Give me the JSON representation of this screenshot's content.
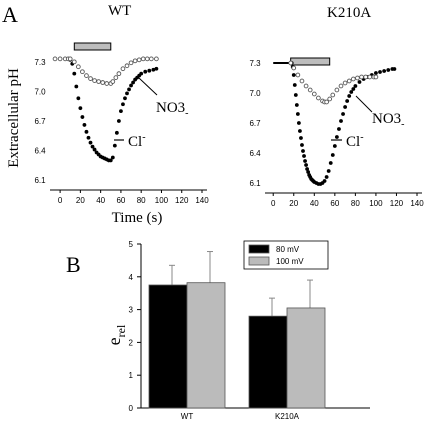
{
  "panel_labels": {
    "a": "A",
    "b": "B"
  },
  "shared": {
    "ylabel": "Extracellular pH",
    "xlabel": "Time (s)",
    "yticks": [
      6.1,
      6.4,
      6.7,
      7.0,
      7.3
    ],
    "xticks": [
      0,
      20,
      40,
      60,
      80,
      100,
      120,
      140
    ]
  },
  "chart_data": [
    {
      "type": "scatter",
      "title": "WT",
      "xlabel": "Time (s)",
      "ylabel": "Extracellular pH",
      "xlim": [
        -8,
        140
      ],
      "ylim": [
        6.0,
        7.42
      ],
      "stimulus_bar": [
        14,
        50
      ],
      "series": [
        {
          "name": "Cl-",
          "marker": "filled",
          "points": [
            [
              -5,
              7.33
            ],
            [
              0,
              7.33
            ],
            [
              5,
              7.33
            ],
            [
              8,
              7.33
            ],
            [
              10,
              7.32
            ],
            [
              12,
              7.28
            ],
            [
              14,
              7.18
            ],
            [
              16,
              7.05
            ],
            [
              18,
              6.93
            ],
            [
              20,
              6.83
            ],
            [
              22,
              6.74
            ],
            [
              24,
              6.66
            ],
            [
              26,
              6.59
            ],
            [
              28,
              6.53
            ],
            [
              30,
              6.48
            ],
            [
              32,
              6.44
            ],
            [
              34,
              6.41
            ],
            [
              36,
              6.38
            ],
            [
              38,
              6.36
            ],
            [
              40,
              6.34
            ],
            [
              42,
              6.33
            ],
            [
              44,
              6.32
            ],
            [
              46,
              6.31
            ],
            [
              48,
              6.3
            ],
            [
              50,
              6.3
            ],
            [
              52,
              6.33
            ],
            [
              54,
              6.45
            ],
            [
              56,
              6.58
            ],
            [
              58,
              6.7
            ],
            [
              60,
              6.8
            ],
            [
              62,
              6.87
            ],
            [
              64,
              6.93
            ],
            [
              66,
              6.98
            ],
            [
              68,
              7.02
            ],
            [
              70,
              7.06
            ],
            [
              72,
              7.09
            ],
            [
              74,
              7.12
            ],
            [
              76,
              7.14
            ],
            [
              78,
              7.16
            ],
            [
              80,
              7.18
            ],
            [
              84,
              7.2
            ],
            [
              88,
              7.21
            ],
            [
              92,
              7.22
            ],
            [
              95,
              7.23
            ]
          ]
        },
        {
          "name": "NO3-",
          "marker": "open",
          "points": [
            [
              -5,
              7.33
            ],
            [
              0,
              7.33
            ],
            [
              5,
              7.33
            ],
            [
              8,
              7.33
            ],
            [
              10,
              7.33
            ],
            [
              14,
              7.3
            ],
            [
              18,
              7.25
            ],
            [
              22,
              7.2
            ],
            [
              26,
              7.16
            ],
            [
              30,
              7.13
            ],
            [
              34,
              7.11
            ],
            [
              38,
              7.1
            ],
            [
              42,
              7.09
            ],
            [
              46,
              7.08
            ],
            [
              50,
              7.08
            ],
            [
              52,
              7.1
            ],
            [
              55,
              7.14
            ],
            [
              58,
              7.18
            ],
            [
              62,
              7.23
            ],
            [
              66,
              7.26
            ],
            [
              70,
              7.29
            ],
            [
              74,
              7.31
            ],
            [
              78,
              7.32
            ],
            [
              82,
              7.33
            ],
            [
              86,
              7.33
            ],
            [
              90,
              7.33
            ],
            [
              95,
              7.33
            ]
          ]
        }
      ],
      "annotations": {
        "no3": "NO3",
        "cl": "Cl"
      }
    },
    {
      "type": "scatter",
      "title": "K210A",
      "xlabel": "Time (s)",
      "ylabel": "Extracellular pH",
      "xlim": [
        -8,
        140
      ],
      "ylim": [
        6.0,
        7.42
      ],
      "stimulus_bar": [
        17,
        55
      ],
      "series": [
        {
          "name": "Cl-",
          "marker": "filled",
          "points": [
            [
              18,
              7.3
            ],
            [
              19,
              7.26
            ],
            [
              20,
              7.18
            ],
            [
              21,
              7.08
            ],
            [
              22,
              6.98
            ],
            [
              23,
              6.88
            ],
            [
              24,
              6.79
            ],
            [
              25,
              6.7
            ],
            [
              26,
              6.62
            ],
            [
              27,
              6.55
            ],
            [
              28,
              6.48
            ],
            [
              29,
              6.42
            ],
            [
              30,
              6.37
            ],
            [
              31,
              6.32
            ],
            [
              32,
              6.28
            ],
            [
              33,
              6.24
            ],
            [
              34,
              6.21
            ],
            [
              35,
              6.18
            ],
            [
              36,
              6.16
            ],
            [
              37,
              6.14
            ],
            [
              38,
              6.13
            ],
            [
              39,
              6.12
            ],
            [
              40,
              6.11
            ],
            [
              42,
              6.1
            ],
            [
              44,
              6.09
            ],
            [
              46,
              6.09
            ],
            [
              48,
              6.1
            ],
            [
              50,
              6.12
            ],
            [
              52,
              6.16
            ],
            [
              54,
              6.22
            ],
            [
              56,
              6.3
            ],
            [
              58,
              6.38
            ],
            [
              60,
              6.47
            ],
            [
              62,
              6.56
            ],
            [
              64,
              6.64
            ],
            [
              66,
              6.72
            ],
            [
              68,
              6.79
            ],
            [
              70,
              6.86
            ],
            [
              72,
              6.92
            ],
            [
              74,
              6.97
            ],
            [
              76,
              7.01
            ],
            [
              78,
              7.04
            ],
            [
              80,
              7.07
            ],
            [
              84,
              7.11
            ],
            [
              88,
              7.14
            ],
            [
              92,
              7.16
            ],
            [
              96,
              7.18
            ],
            [
              100,
              7.2
            ],
            [
              104,
              7.21
            ],
            [
              108,
              7.22
            ],
            [
              112,
              7.23
            ],
            [
              116,
              7.24
            ],
            [
              118,
              7.24
            ]
          ]
        },
        {
          "name": "NO3-",
          "marker": "open",
          "points": [
            [
              17,
              7.3
            ],
            [
              20,
              7.25
            ],
            [
              24,
              7.18
            ],
            [
              28,
              7.12
            ],
            [
              32,
              7.07
            ],
            [
              36,
              7.03
            ],
            [
              40,
              6.99
            ],
            [
              44,
              6.95
            ],
            [
              48,
              6.92
            ],
            [
              50,
              6.91
            ],
            [
              52,
              6.91
            ],
            [
              55,
              6.94
            ],
            [
              58,
              6.98
            ],
            [
              62,
              7.03
            ],
            [
              66,
              7.07
            ],
            [
              70,
              7.1
            ],
            [
              74,
              7.12
            ],
            [
              78,
              7.14
            ],
            [
              82,
              7.15
            ],
            [
              86,
              7.16
            ],
            [
              90,
              7.16
            ],
            [
              94,
              7.16
            ],
            [
              98,
              7.16
            ],
            [
              100,
              7.16
            ]
          ]
        }
      ],
      "baseline_segment": [
        [
          0,
          7.3
        ],
        [
          17,
          7.3
        ]
      ],
      "annotations": {
        "no3": "NO3",
        "cl": "Cl"
      }
    },
    {
      "type": "bar",
      "ylabel": "e",
      "ylabel_sub": "rel",
      "ylim": [
        0,
        5
      ],
      "yticks": [
        0,
        1,
        2,
        3,
        4,
        5
      ],
      "categories": [
        "WT",
        "K210A"
      ],
      "legend_position": "top-right",
      "series": [
        {
          "name": "80 mV",
          "color": "#000000",
          "values": [
            3.75,
            2.8
          ],
          "errors": [
            0.6,
            0.55
          ]
        },
        {
          "name": "100 mV",
          "color": "#bbbbbb",
          "values": [
            3.82,
            3.05
          ],
          "errors": [
            0.95,
            0.85
          ]
        }
      ]
    }
  ]
}
